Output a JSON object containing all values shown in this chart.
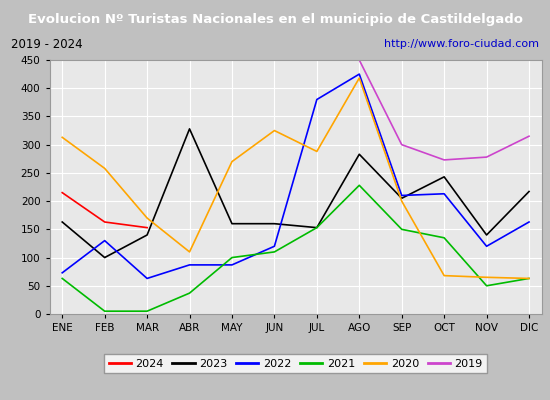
{
  "title": "Evolucion Nº Turistas Nacionales en el municipio de Castildelgado",
  "subtitle_left": "2019 - 2024",
  "subtitle_right": "http://www.foro-ciudad.com",
  "months": [
    "ENE",
    "FEB",
    "MAR",
    "ABR",
    "MAY",
    "JUN",
    "JUL",
    "AGO",
    "SEP",
    "OCT",
    "NOV",
    "DIC"
  ],
  "series": {
    "2024": {
      "color": "#ff0000",
      "data": [
        215,
        163,
        153,
        null,
        null,
        null,
        null,
        null,
        null,
        null,
        null,
        null
      ]
    },
    "2023": {
      "color": "#000000",
      "data": [
        163,
        100,
        140,
        328,
        160,
        160,
        153,
        283,
        205,
        243,
        140,
        217
      ]
    },
    "2022": {
      "color": "#0000ff",
      "data": [
        73,
        130,
        63,
        87,
        87,
        120,
        380,
        425,
        210,
        213,
        120,
        163
      ]
    },
    "2021": {
      "color": "#00bb00",
      "data": [
        63,
        5,
        5,
        37,
        100,
        110,
        153,
        228,
        150,
        135,
        50,
        63
      ]
    },
    "2020": {
      "color": "#ffa500",
      "data": [
        313,
        258,
        170,
        110,
        270,
        325,
        288,
        418,
        200,
        68,
        65,
        63
      ]
    },
    "2019": {
      "color": "#cc44cc",
      "data": [
        null,
        null,
        null,
        null,
        null,
        null,
        null,
        450,
        300,
        273,
        278,
        315
      ]
    }
  },
  "ylim": [
    0,
    450
  ],
  "yticks": [
    0,
    50,
    100,
    150,
    200,
    250,
    300,
    350,
    400,
    450
  ],
  "title_bg_color": "#4472c4",
  "title_text_color": "#ffffff",
  "subtitle_bg_color": "#d4d4d4",
  "plot_bg_color": "#e8e8e8",
  "grid_color": "#ffffff",
  "fig_bg_color": "#c0c0c0",
  "legend_order": [
    "2024",
    "2023",
    "2022",
    "2021",
    "2020",
    "2019"
  ]
}
